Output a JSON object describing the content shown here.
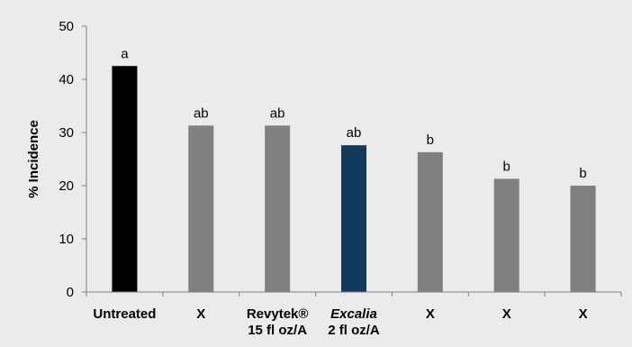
{
  "chart_data": {
    "type": "bar",
    "title": "",
    "xlabel": "",
    "ylabel": "% Incidence",
    "ylim": [
      0,
      50
    ],
    "yticks": [
      0,
      10,
      20,
      30,
      40,
      50
    ],
    "grid": false,
    "legend": "none",
    "categories": [
      {
        "lines": [
          "Untreated"
        ],
        "italic": false
      },
      {
        "lines": [
          "X"
        ],
        "italic": false
      },
      {
        "lines": [
          "Revytek®",
          "15 fl oz/A"
        ],
        "italic": false
      },
      {
        "lines": [
          "Excalia",
          "2 fl oz/A"
        ],
        "italic": true
      },
      {
        "lines": [
          "X"
        ],
        "italic": false
      },
      {
        "lines": [
          "X"
        ],
        "italic": false
      },
      {
        "lines": [
          "X"
        ],
        "italic": false
      }
    ],
    "values": [
      42.5,
      31.3,
      31.3,
      27.6,
      26.3,
      21.3,
      20.0
    ],
    "significance_letters": [
      "a",
      "ab",
      "ab",
      "ab",
      "b",
      "b",
      "b"
    ],
    "bar_colors": [
      "#000000",
      "#808080",
      "#808080",
      "#123a5c",
      "#808080",
      "#808080",
      "#808080"
    ],
    "background_color": "#ebebeb"
  }
}
